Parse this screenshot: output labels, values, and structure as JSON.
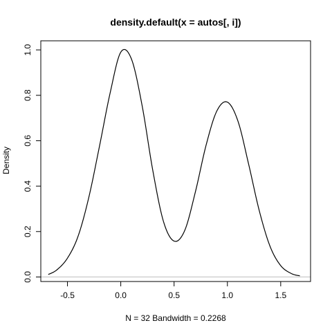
{
  "chart_data": {
    "type": "line",
    "title": "density.default(x = autos[, i])",
    "xlabel": "N = 32   Bandwidth = 0.2268",
    "ylabel": "Density",
    "xlim": [
      -0.75,
      1.78
    ],
    "ylim": [
      -0.02,
      1.04
    ],
    "x_ticks": [
      "-0.5",
      "0.0",
      "0.5",
      "1.0",
      "1.5"
    ],
    "y_ticks": [
      "0.0",
      "0.2",
      "0.4",
      "0.6",
      "0.8",
      "1.0"
    ],
    "grid": false,
    "baseline": 0,
    "colors": {
      "line": "#000000",
      "baseline": "#bebebe"
    },
    "series": [
      {
        "x": [
          -0.68,
          -0.6,
          -0.5,
          -0.4,
          -0.3,
          -0.2,
          -0.1,
          0.0,
          0.1,
          0.2,
          0.3,
          0.4,
          0.5,
          0.6,
          0.7,
          0.8,
          0.9,
          1.0,
          1.1,
          1.2,
          1.3,
          1.4,
          1.5,
          1.6,
          1.68
        ],
        "y": [
          0.011,
          0.031,
          0.083,
          0.18,
          0.35,
          0.575,
          0.81,
          0.99,
          0.96,
          0.755,
          0.47,
          0.245,
          0.158,
          0.205,
          0.375,
          0.58,
          0.73,
          0.77,
          0.685,
          0.495,
          0.29,
          0.135,
          0.05,
          0.015,
          0.005
        ]
      }
    ]
  }
}
